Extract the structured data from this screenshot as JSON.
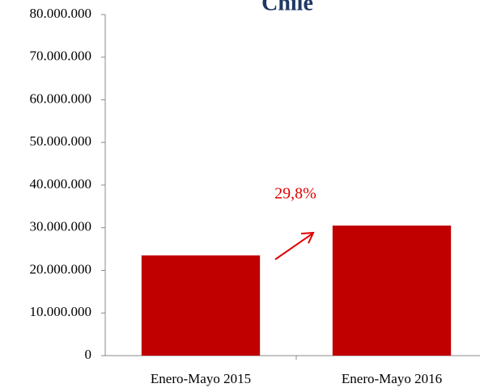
{
  "chart_data": {
    "type": "bar",
    "title": "Chile",
    "categories": [
      "Enero-Mayo 2015",
      "Enero-Mayo 2016"
    ],
    "values": [
      23500000,
      30500000
    ],
    "color": "#c00000",
    "ylim": [
      0,
      80000000
    ],
    "yticks": [
      0,
      {
        "value": 10000000,
        "label": "10.000.000"
      },
      {
        "value": 20000000,
        "label": "20.000.000"
      },
      {
        "value": 30000000,
        "label": "30.000.000"
      },
      {
        "value": 40000000,
        "label": "40.000.000"
      },
      {
        "value": 50000000,
        "label": "50.000.000"
      },
      {
        "value": 60000000,
        "label": "60.000.000"
      },
      {
        "value": 70000000,
        "label": "70.000.000"
      },
      {
        "value": 80000000,
        "label": "80.000.000"
      }
    ],
    "annotation": "29,8%",
    "grid": false
  }
}
